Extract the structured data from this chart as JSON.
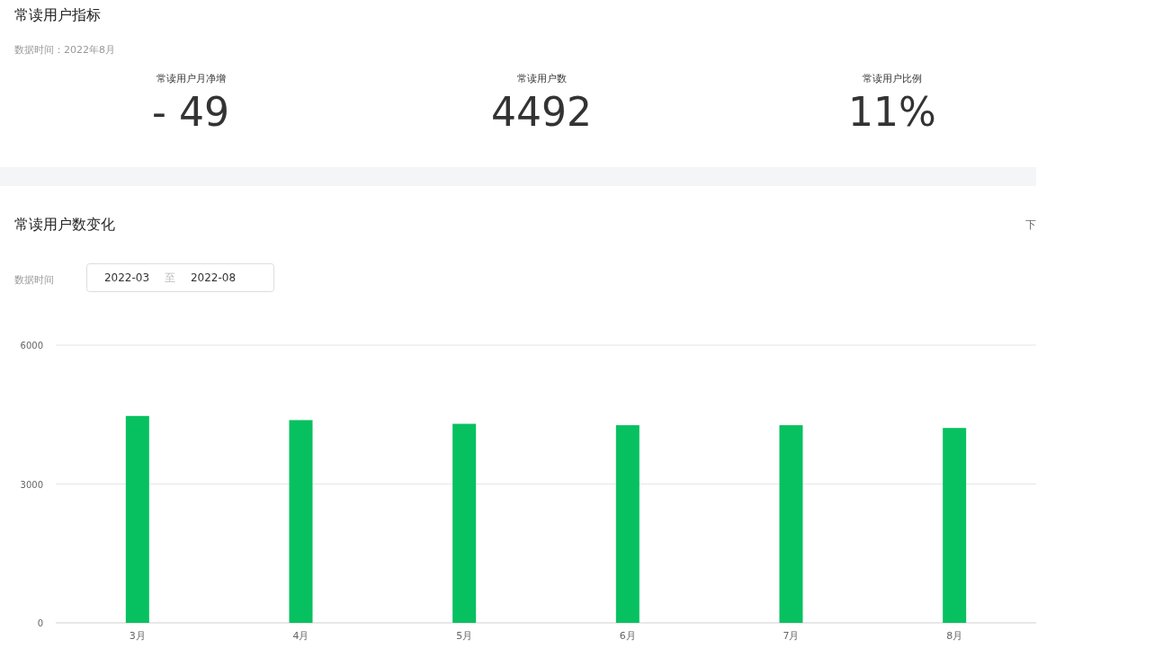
{
  "chart_data": [
    {
      "type": "other",
      "title": "常读用户指标",
      "subtitle": "数据时间：2022年8月",
      "annotations": [
        "常读用户月净增",
        "- 49",
        "常读用户数",
        "4492",
        "常读用户比例",
        "11%"
      ]
    },
    {
      "type": "bar",
      "title": "常读用户数变化",
      "annotations": [
        "下",
        "数据时间",
        "2022-03",
        "至",
        "2022-08"
      ],
      "categories": [
        "3月",
        "4月",
        "5月",
        "6月",
        "7月",
        "8月"
      ],
      "values": [
        4470,
        4380,
        4300,
        4270,
        4270,
        4210
      ],
      "color": "#07c160",
      "ylim": [
        0,
        6000
      ],
      "yticks": [
        0,
        3000,
        6000
      ],
      "grid": "y"
    }
  ]
}
